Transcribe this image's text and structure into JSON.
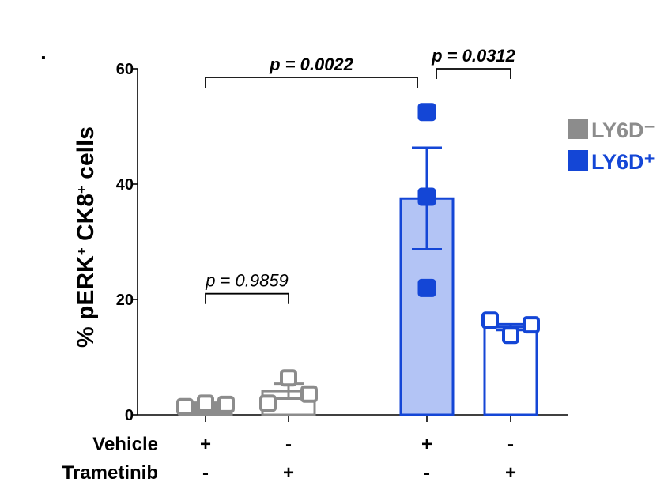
{
  "chart_data": {
    "type": "bar",
    "ylabel_parts": [
      "% pERK",
      "+",
      " CK8",
      "+",
      " cells"
    ],
    "yticks": [
      0,
      20,
      40,
      60
    ],
    "ylim": [
      0,
      60
    ],
    "groups": [
      {
        "series": "LY6D-",
        "vehicle": "+",
        "trametinib": "-",
        "mean": 1.8,
        "error": 0.3,
        "points": [
          1.4,
          2.0,
          1.8
        ],
        "fill": "#8c8c8c",
        "edge": "#8c8c8c",
        "filled_markers": false
      },
      {
        "series": "LY6D-",
        "vehicle": "-",
        "trametinib": "+",
        "mean": 4.1,
        "error": 1.3,
        "points": [
          2.0,
          6.4,
          3.6
        ],
        "fill": "#ffffff",
        "edge": "#8c8c8c",
        "filled_markers": false
      },
      {
        "series": "LY6D+",
        "vehicle": "+",
        "trametinib": "-",
        "mean": 37.5,
        "error": 8.8,
        "points": [
          52.5,
          37.8,
          22.0
        ],
        "fill": "#b3c4f5",
        "edge": "#1446d6",
        "filled_markers": true
      },
      {
        "series": "LY6D+",
        "vehicle": "-",
        "trametinib": "+",
        "mean": 15.2,
        "error": 0.5,
        "points": [
          16.4,
          13.8,
          15.6
        ],
        "fill": "#ffffff",
        "edge": "#1446d6",
        "filled_markers": false
      }
    ],
    "comparisons": [
      {
        "from": 0,
        "to": 2,
        "label": "p = 0.0022",
        "bold": true,
        "y": 58.5
      },
      {
        "from": 2,
        "to": 3,
        "label": "p = 0.0312",
        "bold": true,
        "y": 60
      },
      {
        "from": 0,
        "to": 1,
        "label": "p = 0.9859",
        "bold": false,
        "y": 21
      }
    ],
    "row_labels": {
      "vehicle": "Vehicle",
      "trametinib": "Trametinib"
    },
    "legend": [
      {
        "label": "LY6D⁻",
        "color": "#8c8c8c"
      },
      {
        "label": "LY6D⁺",
        "color": "#1446d6"
      }
    ],
    "panel_marker": "▪"
  }
}
